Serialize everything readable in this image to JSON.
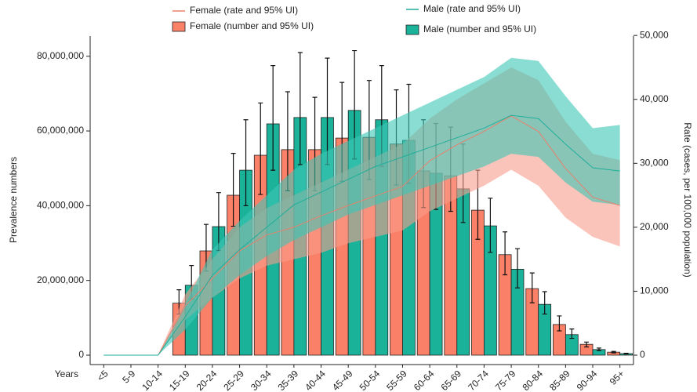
{
  "chart_data": {
    "type": "bar",
    "x_label": "Years",
    "y_label": "Prevalence numbers",
    "y2_label": "Rate (cases, per 100,000 population)",
    "categories": [
      "<5",
      "5-9",
      "10-14",
      "15-19",
      "20-24",
      "25-29",
      "30-34",
      "35-39",
      "40-44",
      "45-49",
      "50-54",
      "55-59",
      "60-64",
      "65-69",
      "70-74",
      "75-79",
      "80-84",
      "85-89",
      "90-94",
      "95+"
    ],
    "ylim": [
      -2520000,
      85400000
    ],
    "yticks": [
      0,
      {
        "value": 20000000,
        "label": "20,000,000"
      },
      {
        "value": 40000000,
        "label": "40,000,000"
      },
      {
        "value": 60000000,
        "label": "60,000,000"
      },
      {
        "value": 80000000,
        "label": "80,000,000"
      }
    ],
    "y2lim": [
      -1470,
      49900
    ],
    "y2ticks": [
      0,
      {
        "value": 10000,
        "label": "10,000"
      },
      {
        "value": 20000,
        "label": "20,000"
      },
      {
        "value": 30000,
        "label": "30,000"
      },
      {
        "value": 40000,
        "label": "40,000"
      },
      {
        "value": 50000,
        "label": "50,000"
      }
    ],
    "series": [
      {
        "name": "Female (number and 95% UI)",
        "type": "bar",
        "color": "#fa8068",
        "values": [
          0,
          0,
          0,
          13900000,
          27900000,
          42800000,
          53500000,
          55000000,
          55000000,
          58100000,
          58300000,
          56500000,
          49300000,
          48000000,
          38800000,
          26900000,
          17800000,
          8200000,
          2900000,
          800000
        ],
        "lower": [
          0,
          0,
          0,
          11000000,
          22500000,
          34500000,
          43000000,
          44000000,
          44000000,
          46500000,
          47000000,
          45500000,
          39500000,
          38500000,
          31000000,
          21500000,
          14000000,
          6500000,
          2200000,
          600000
        ],
        "upper": [
          0,
          0,
          0,
          17500000,
          35000000,
          54000000,
          67500000,
          70500000,
          69000000,
          73000000,
          73500000,
          71000000,
          63000000,
          61000000,
          49500000,
          33000000,
          22000000,
          10500000,
          3500000,
          1000000
        ]
      },
      {
        "name": "Male (number and 95% UI)",
        "type": "bar",
        "color": "#1bb29a",
        "values": [
          0,
          0,
          0,
          18700000,
          34400000,
          49500000,
          61900000,
          63600000,
          63600000,
          65500000,
          63000000,
          57500000,
          48700000,
          44500000,
          34600000,
          23000000,
          13600000,
          5500000,
          1500000,
          400000
        ],
        "lower": [
          0,
          0,
          0,
          15000000,
          28000000,
          40000000,
          49500000,
          51000000,
          51000000,
          52500000,
          50500000,
          46000000,
          39000000,
          35500000,
          27500000,
          18000000,
          11000000,
          4500000,
          1200000,
          300000
        ],
        "upper": [
          0,
          0,
          0,
          24000000,
          43500000,
          63000000,
          77500000,
          81000000,
          79500000,
          81500000,
          77500000,
          72500000,
          62000000,
          56500000,
          42000000,
          28500000,
          17000000,
          7000000,
          1900000,
          500000
        ]
      },
      {
        "name": "Female (rate and 95% UI)",
        "type": "line",
        "axis": "y2",
        "color": "#e8806c",
        "band_color": "#f99c8c",
        "values": [
          0,
          0,
          0,
          7700,
          12000,
          16300,
          18800,
          20000,
          21800,
          23400,
          24900,
          26400,
          30400,
          32900,
          35000,
          37400,
          35000,
          29200,
          24700,
          23400
        ],
        "lower": [
          0,
          0,
          0,
          5500,
          9000,
          12000,
          14000,
          15000,
          16000,
          17500,
          18500,
          19500,
          22500,
          24500,
          26500,
          29000,
          26500,
          21500,
          18500,
          17000
        ],
        "upper": [
          0,
          0,
          0,
          9500,
          15000,
          20000,
          23000,
          25000,
          27000,
          29000,
          31000,
          33000,
          37000,
          40000,
          42500,
          45000,
          43000,
          36500,
          31500,
          30500
        ]
      },
      {
        "name": "Male (rate and 95% UI)",
        "type": "line",
        "axis": "y2",
        "color": "#1fae9a",
        "band_color": "#3cc7b5",
        "values": [
          0,
          0,
          0,
          6000,
          12500,
          16500,
          20000,
          23500,
          25500,
          27500,
          29500,
          31000,
          32500,
          34000,
          35500,
          37500,
          37000,
          33000,
          29300,
          28800
        ],
        "lower": [
          0,
          0,
          0,
          4000,
          9000,
          12500,
          15500,
          18000,
          20000,
          22000,
          23500,
          25000,
          26500,
          28000,
          29500,
          31500,
          31000,
          27000,
          24000,
          23500
        ],
        "upper": [
          0,
          0,
          0,
          8000,
          16500,
          21000,
          25000,
          29000,
          31500,
          33500,
          35500,
          37500,
          39500,
          41500,
          43500,
          46500,
          46000,
          40500,
          35500,
          36000
        ]
      }
    ]
  }
}
